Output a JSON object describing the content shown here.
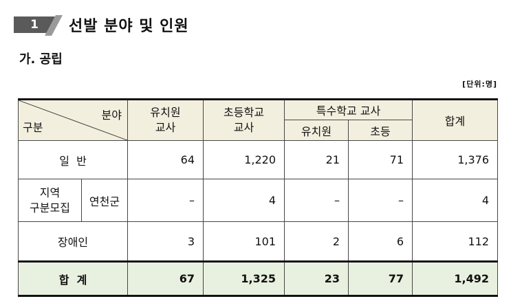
{
  "section": {
    "number": "1",
    "title": "선발 분야 및 인원"
  },
  "subsection": "가. 공립",
  "unit": "[단위:명]",
  "table": {
    "corner_top": "분야",
    "corner_bottom": "구분",
    "col_kindergarten_line1": "유치원",
    "col_kindergarten_line2": "교사",
    "col_elementary_line1": "초등학교",
    "col_elementary_line2": "교사",
    "col_special_group": "특수학교 교사",
    "col_special_kindergarten": "유치원",
    "col_special_elementary": "초등",
    "col_total": "합계",
    "rows": [
      {
        "label": "일  반",
        "values": [
          "64",
          "1,220",
          "21",
          "71",
          "1,376"
        ]
      },
      {
        "label_line1": "지역",
        "label_line2": "구분모집",
        "sublabel": "연천군",
        "values": [
          "–",
          "4",
          "–",
          "–",
          "4"
        ]
      },
      {
        "label": "장애인",
        "values": [
          "3",
          "101",
          "2",
          "6",
          "112"
        ]
      }
    ],
    "total_row": {
      "label": "합  계",
      "values": [
        "67",
        "1,325",
        "23",
        "77",
        "1,492"
      ]
    }
  }
}
